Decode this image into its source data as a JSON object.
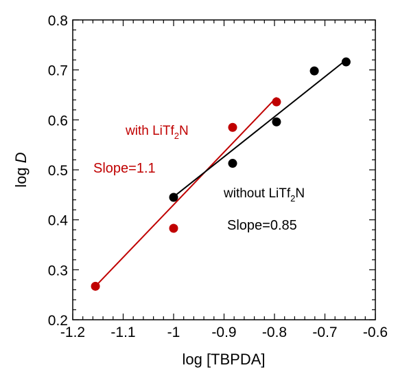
{
  "chart_data": {
    "type": "scatter",
    "xlabel": "log [TBPDA]",
    "ylabel_main": "log ",
    "ylabel_italic": "D",
    "xlim": [
      -1.2,
      -0.6
    ],
    "ylim": [
      0.2,
      0.8
    ],
    "x_ticks": [
      "-1.2",
      "-1.1",
      "-1",
      "-0.9",
      "-0.8",
      "-0.7",
      "-0.6"
    ],
    "y_ticks": [
      "0.2",
      "0.3",
      "0.4",
      "0.5",
      "0.6",
      "0.7",
      "0.8"
    ],
    "grid": false,
    "series": [
      {
        "color": "#c00000",
        "points": [
          {
            "x": -1.155,
            "y": 0.267
          },
          {
            "x": -1.0,
            "y": 0.383
          },
          {
            "x": -0.883,
            "y": 0.585
          },
          {
            "x": -0.796,
            "y": 0.636
          }
        ],
        "fit": {
          "x1": -1.155,
          "y1": 0.267,
          "x2": -0.796,
          "y2": 0.645
        }
      },
      {
        "color": "#000000",
        "points": [
          {
            "x": -1.0,
            "y": 0.445
          },
          {
            "x": -0.883,
            "y": 0.513
          },
          {
            "x": -0.796,
            "y": 0.596
          },
          {
            "x": -0.721,
            "y": 0.698
          },
          {
            "x": -0.658,
            "y": 0.716
          }
        ],
        "fit": {
          "x1": -1.0,
          "y1": 0.446,
          "x2": -0.658,
          "y2": 0.72
        }
      }
    ],
    "annotations": {
      "with": {
        "prefix": "with LiTf",
        "sub": "2",
        "suffix": "N",
        "color": "#c00000"
      },
      "slope_with": {
        "text": "Slope=1.1",
        "color": "#c00000"
      },
      "without": {
        "prefix": "without LiTf",
        "sub": "2",
        "suffix": "N",
        "color": "#000000"
      },
      "slope_without": {
        "text": "Slope=0.85",
        "color": "#000000"
      }
    }
  }
}
